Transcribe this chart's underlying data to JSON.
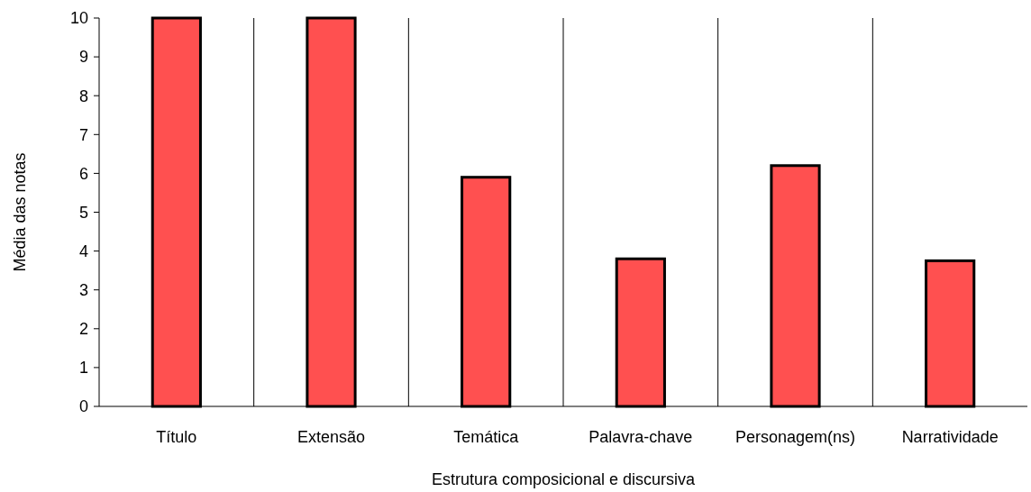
{
  "chart_data": {
    "type": "bar",
    "xlabel": "Estrutura composicional e discursiva",
    "ylabel": "Média das notas",
    "categories": [
      "Título",
      "Extensão",
      "Temática",
      "Palavra-chave",
      "Personagem(ns)",
      "Narratividade"
    ],
    "values": [
      10,
      10,
      5.9,
      3.8,
      6.2,
      3.75
    ],
    "color": "#ff5050",
    "ylim": [
      0,
      10
    ],
    "yticks": [
      0,
      1,
      2,
      3,
      4,
      5,
      6,
      7,
      8,
      9,
      10
    ]
  }
}
